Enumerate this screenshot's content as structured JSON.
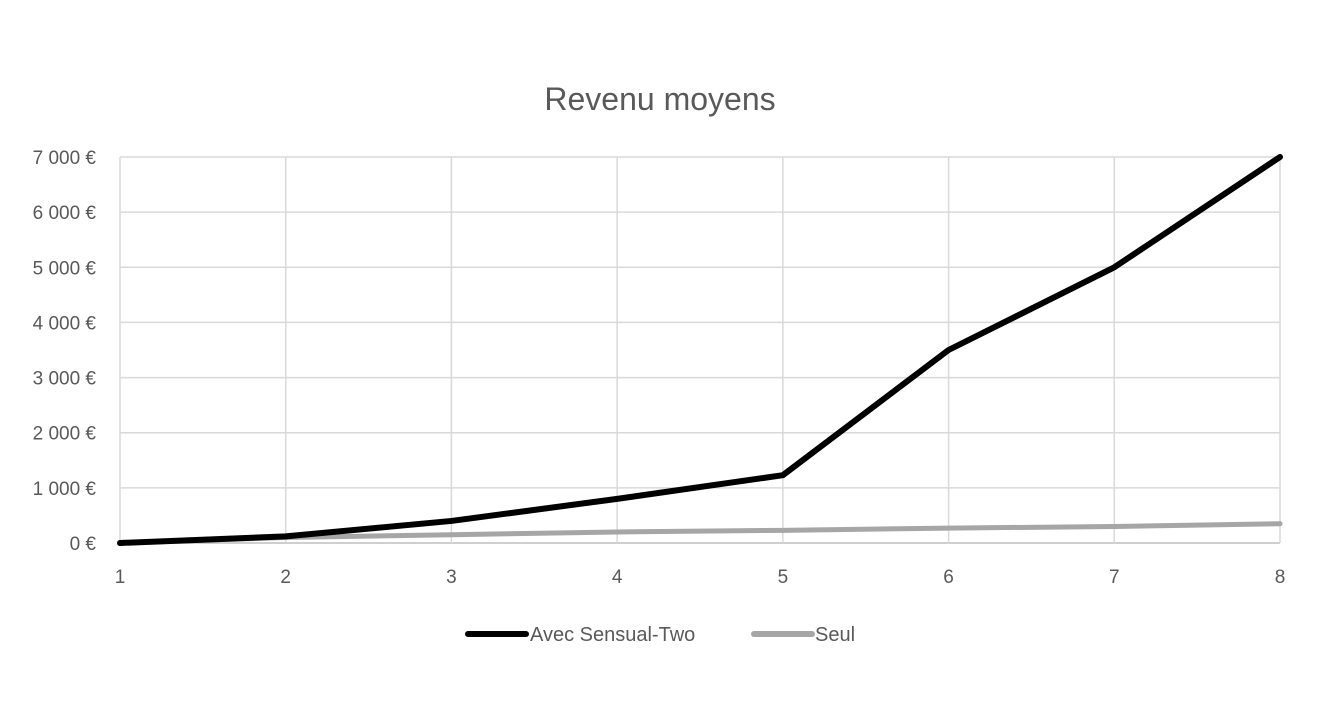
{
  "chart_data": {
    "type": "line",
    "title": "Revenu moyens",
    "xlabel": "",
    "ylabel": "",
    "x": [
      1,
      2,
      3,
      4,
      5,
      6,
      7,
      8
    ],
    "x_tick_labels": [
      "1",
      "2",
      "3",
      "4",
      "5",
      "6",
      "7",
      "8"
    ],
    "ylim": [
      0,
      7000
    ],
    "y_tick_values": [
      0,
      1000,
      2000,
      3000,
      4000,
      5000,
      6000,
      7000
    ],
    "y_tick_labels": [
      "0 €",
      "1 000 €",
      "2 000 €",
      "3 000 €",
      "4 000 €",
      "5 000 €",
      "6 000 €",
      "7 000 €"
    ],
    "grid": true,
    "legend_position": "bottom",
    "series": [
      {
        "name": "Avec Sensual-Two",
        "color": "#000000",
        "values": [
          0,
          120,
          400,
          800,
          1230,
          3500,
          5000,
          7000
        ]
      },
      {
        "name": "Seul",
        "color": "#a6a6a6",
        "values": [
          0,
          100,
          150,
          200,
          230,
          270,
          300,
          350
        ]
      }
    ]
  }
}
